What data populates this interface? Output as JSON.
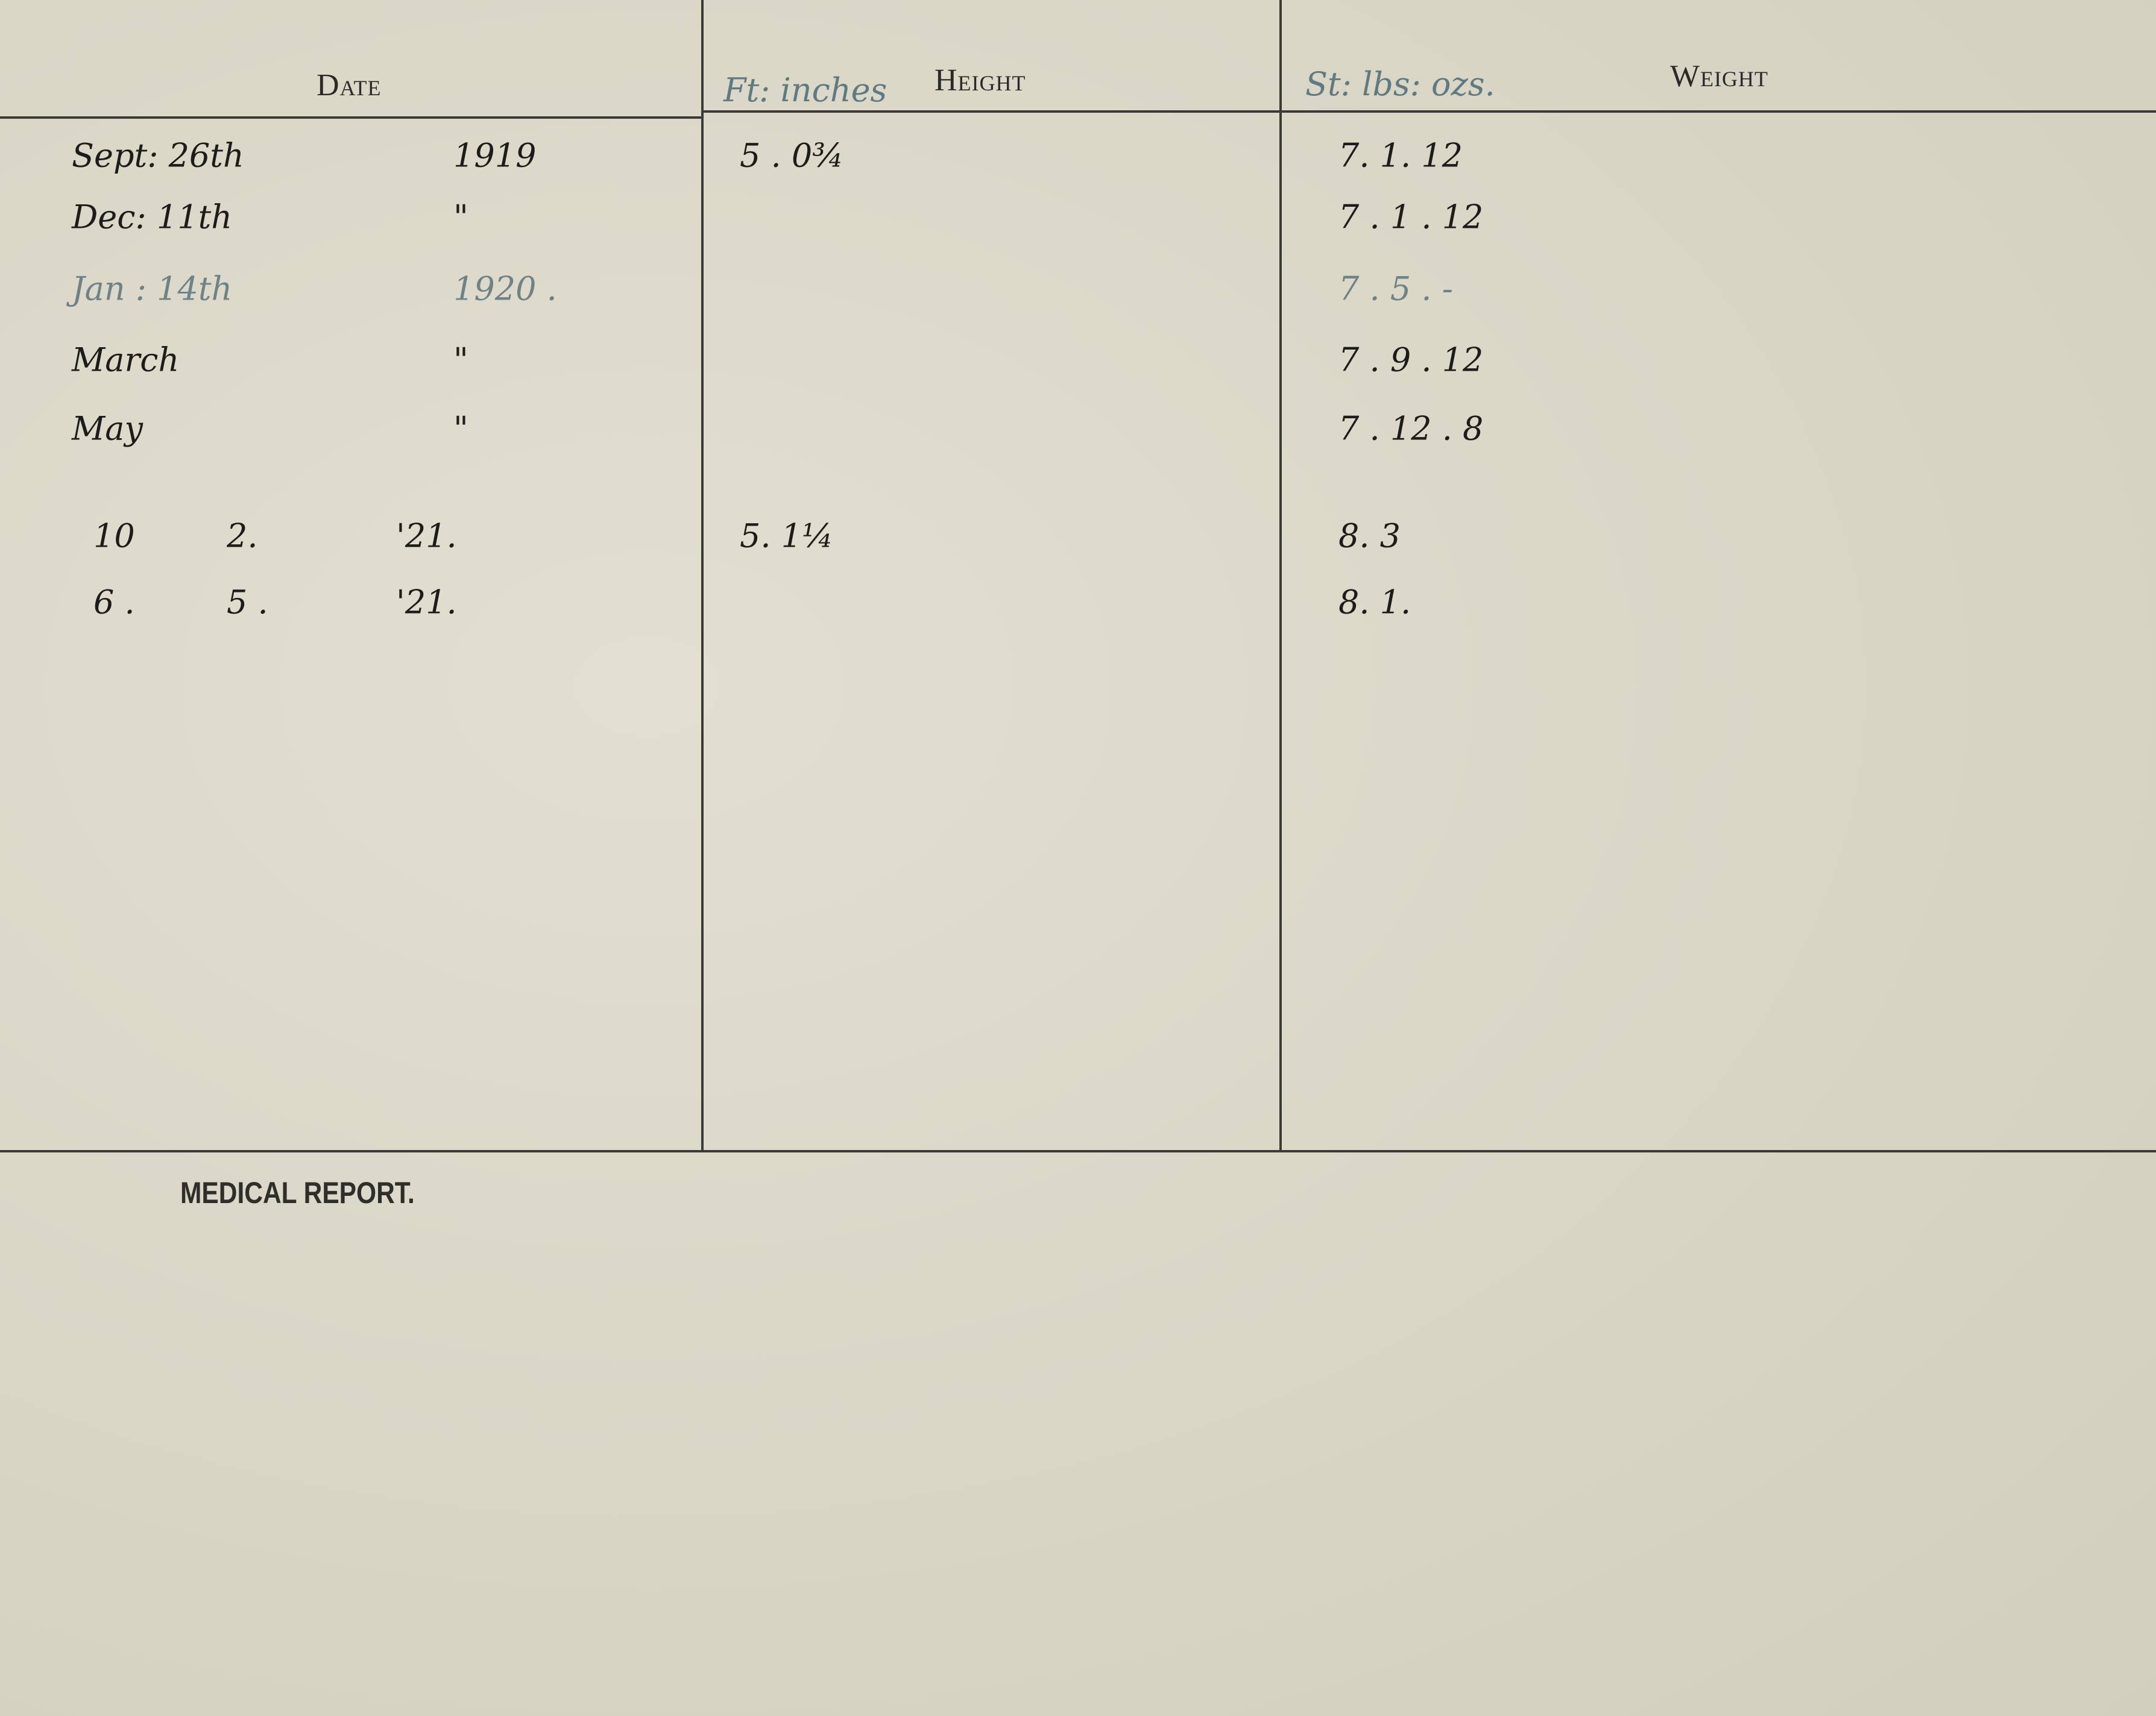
{
  "headers": {
    "date": "Date",
    "height": "Height",
    "weight": "Weight",
    "height_units": "Ft: inches",
    "weight_units": "St: lbs: ozs."
  },
  "rows": [
    {
      "month": "Sept: 26th",
      "day": "",
      "year": "1919",
      "height": "5 . 0¾",
      "weight": "7. 1. 12",
      "ink": "dark"
    },
    {
      "month": "Dec: 11th",
      "day": "",
      "year": "\"",
      "height": "",
      "weight": "7 . 1 . 12",
      "ink": "dark"
    },
    {
      "month": "Jan : 14th",
      "day": "",
      "year": "1920 .",
      "height": "",
      "weight": "7 . 5 . -",
      "ink": "faint"
    },
    {
      "month": "March",
      "day": "",
      "year": "\"",
      "height": "",
      "weight": "7 . 9 . 12",
      "ink": "dark"
    },
    {
      "month": "May",
      "day": "",
      "year": "\"",
      "height": "",
      "weight": "7 . 12 . 8",
      "ink": "dark"
    },
    {
      "month": "10",
      "day": "2.",
      "year": "'21.",
      "height": "5. 1¼",
      "weight": "8. 3",
      "ink": "dark"
    },
    {
      "month": "6 .",
      "day": "5 .",
      "year": "'21.",
      "height": "",
      "weight": "8. 1.",
      "ink": "dark"
    }
  ],
  "medical_report": {
    "label": "MEDICAL REPORT."
  }
}
